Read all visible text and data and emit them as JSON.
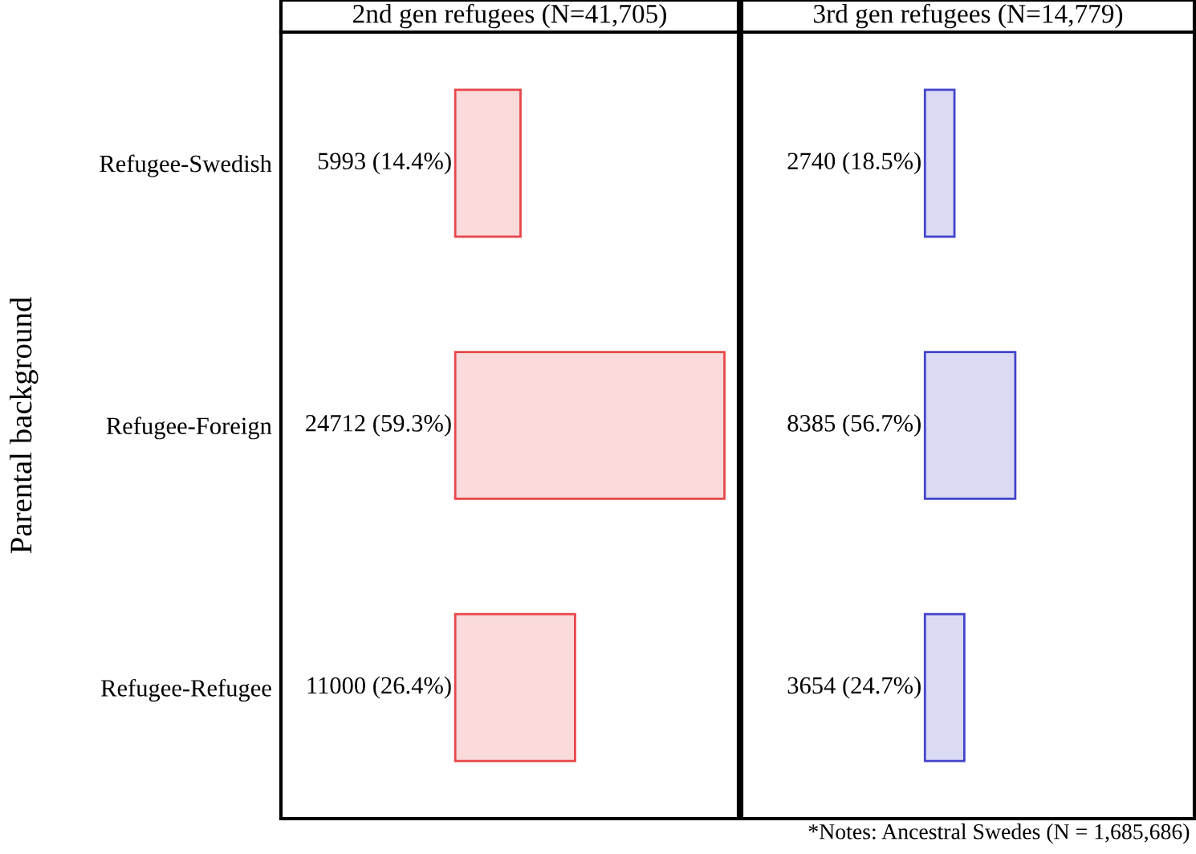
{
  "chart_data": [
    {
      "type": "bar",
      "orientation": "horizontal",
      "title": "2nd gen refugees (N=41,705)",
      "ylabel": "Parental background",
      "categories": [
        "Refugee-Swedish",
        "Refugee-Foreign",
        "Refugee-Refugee"
      ],
      "series": [
        {
          "color": "#e8474b",
          "values": [
            5993,
            24712,
            11000
          ],
          "value_labels": [
            "5993 (14.4%)",
            "24712 (59.3%)",
            "11000 (26.4%)"
          ]
        }
      ],
      "xlim": [
        -16000,
        26000
      ],
      "tick_labels": "y",
      "grid": false,
      "legend": false
    },
    {
      "type": "bar",
      "orientation": "horizontal",
      "title": "3rd gen refugees (N=14,779)",
      "categories": [
        null,
        null,
        null
      ],
      "series": [
        {
          "color": "#4444cc",
          "values": [
            2740,
            8385,
            3654
          ],
          "value_labels": [
            "2740 (18.5%)",
            "8385 (56.7%)",
            "3654 (24.7%)"
          ]
        }
      ],
      "xlim": [
        -17000,
        25000
      ],
      "tick_labels": false,
      "grid": false,
      "legend": false,
      "annotations": [
        "*Notes: Ancestral Swedes (N = 1,685,686)"
      ]
    }
  ]
}
